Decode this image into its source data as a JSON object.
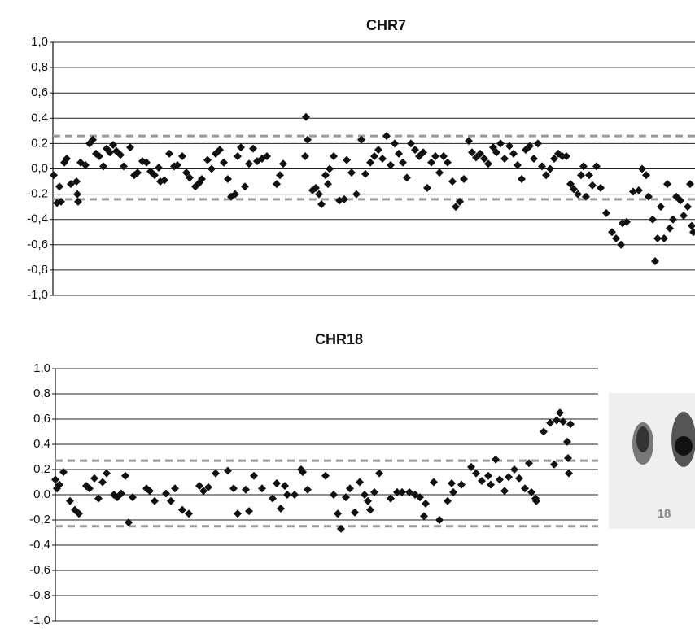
{
  "chart_data": [
    {
      "type": "scatter",
      "title": "CHR7",
      "color": "#111111",
      "grid": true,
      "xlim": [
        0,
        789
      ],
      "ylim": [
        -1.0,
        1.0
      ],
      "yticks": [
        {
          "value": -1.0,
          "label": "-1,0"
        },
        {
          "value": -0.8,
          "label": "-0,8"
        },
        {
          "value": -0.6,
          "label": "-0,6"
        },
        {
          "value": -0.4,
          "label": "-0,4"
        },
        {
          "value": -0.2,
          "label": "-0.2"
        },
        {
          "value": 0,
          "label": "0,0"
        },
        {
          "value": 0.2,
          "label": "0.2"
        },
        {
          "value": 0.4,
          "label": "0.4"
        },
        {
          "value": 0.6,
          "label": "0,6"
        },
        {
          "value": 0.8,
          "label": "0,8"
        },
        {
          "value": 1.0,
          "label": "1,0"
        }
      ],
      "hlines": [
        0.26,
        -0.24
      ],
      "x": [
        1,
        5,
        8,
        10,
        14,
        17,
        22,
        29,
        30,
        31,
        34,
        40,
        45,
        49,
        53,
        57,
        62,
        66,
        70,
        74,
        78,
        83,
        87,
        95,
        100,
        104,
        110,
        115,
        120,
        125,
        130,
        132,
        137,
        143,
        149,
        153,
        159,
        164,
        168,
        175,
        180,
        183,
        190,
        195,
        200,
        205,
        210,
        215,
        219,
        224,
        227,
        231,
        236,
        241,
        246,
        251,
        257,
        263,
        275,
        279,
        283,
        310,
        311,
        313,
        319,
        323,
        327,
        330,
        335,
        338,
        340,
        345,
        352,
        358,
        361,
        367,
        373,
        379,
        384,
        390,
        395,
        400,
        405,
        410,
        415,
        420,
        425,
        430,
        435,
        440,
        445,
        450,
        455,
        460,
        465,
        470,
        475,
        480,
        485,
        491,
        495,
        500,
        505,
        511,
        515,
        520,
        525,
        530,
        535,
        541,
        545,
        550,
        555,
        561,
        566,
        571,
        576,
        581,
        586,
        591,
        596,
        601,
        606,
        611,
        616,
        621,
        626,
        631,
        636,
        640,
        645,
        649,
        652,
        655,
        659,
        663,
        668,
        673,
        680,
        687,
        692,
        698,
        700,
        705,
        713,
        720,
        724,
        729,
        732,
        737,
        740,
        743,
        747,
        751,
        755,
        758,
        762,
        766,
        771,
        775,
        780,
        783,
        785,
        787
      ],
      "values": [
        -0.05,
        -0.27,
        -0.14,
        -0.26,
        0.05,
        0.08,
        -0.12,
        -0.1,
        -0.2,
        -0.26,
        0.05,
        0.03,
        0.2,
        0.23,
        0.12,
        0.1,
        0.02,
        0.16,
        0.13,
        0.19,
        0.14,
        0.11,
        0.02,
        0.17,
        -0.05,
        -0.03,
        0.06,
        0.05,
        -0.02,
        -0.05,
        0.01,
        -0.1,
        -0.09,
        0.12,
        0.02,
        0.03,
        0.1,
        -0.03,
        -0.07,
        -0.14,
        -0.11,
        -0.08,
        0.07,
        0.0,
        0.12,
        0.15,
        0.05,
        -0.08,
        -0.22,
        -0.2,
        0.1,
        0.17,
        -0.14,
        0.04,
        0.16,
        0.06,
        0.08,
        0.1,
        -0.12,
        -0.05,
        0.04,
        0.1,
        0.41,
        0.23,
        -0.17,
        -0.15,
        -0.2,
        -0.28,
        -0.05,
        -0.12,
        0.0,
        0.1,
        -0.25,
        -0.24,
        0.07,
        -0.03,
        -0.2,
        0.23,
        -0.04,
        0.05,
        0.1,
        0.15,
        0.08,
        0.26,
        0.03,
        0.2,
        0.12,
        0.05,
        -0.07,
        0.2,
        0.15,
        0.1,
        0.13,
        -0.15,
        0.05,
        0.1,
        -0.03,
        0.1,
        0.05,
        -0.1,
        -0.3,
        -0.26,
        -0.08,
        0.22,
        0.13,
        0.09,
        0.12,
        0.08,
        0.04,
        0.17,
        0.13,
        0.2,
        0.08,
        0.18,
        0.12,
        0.03,
        -0.08,
        0.15,
        0.18,
        0.08,
        0.2,
        0.02,
        -0.05,
        0.0,
        0.08,
        0.12,
        0.1,
        0.1,
        -0.12,
        -0.16,
        -0.2,
        -0.05,
        0.02,
        -0.22,
        -0.05,
        -0.13,
        0.02,
        -0.15,
        -0.35,
        -0.5,
        -0.55,
        -0.6,
        -0.43,
        -0.42,
        -0.18,
        -0.17,
        0.0,
        -0.05,
        -0.22,
        -0.4,
        -0.73,
        -0.55,
        -0.3,
        -0.55,
        -0.12,
        -0.47,
        -0.4,
        -0.22,
        -0.25,
        -0.37,
        -0.3,
        -0.12,
        -0.45,
        -0.5
      ]
    },
    {
      "type": "scatter",
      "title": "CHR18",
      "color": "#111111",
      "grid": true,
      "annotation": "18",
      "xlim": [
        0,
        667
      ],
      "ylim": [
        -1.0,
        1.0
      ],
      "yticks": [
        {
          "value": -1.0,
          "label": "-1,0"
        },
        {
          "value": -0.8,
          "label": "-0,8"
        },
        {
          "value": -0.6,
          "label": "-0,6"
        },
        {
          "value": -0.4,
          "label": "-0,4"
        },
        {
          "value": -0.2,
          "label": "-0,2"
        },
        {
          "value": 0,
          "label": "0,0"
        },
        {
          "value": 0.2,
          "label": "0,2"
        },
        {
          "value": 0.4,
          "label": "0,4"
        },
        {
          "value": 0.6,
          "label": "0,6"
        },
        {
          "value": 0.8,
          "label": "0,8"
        },
        {
          "value": 1.0,
          "label": "1,0"
        }
      ],
      "hlines": [
        0.27,
        -0.25
      ],
      "x": [
        0,
        2,
        5,
        10,
        18,
        24,
        29,
        38,
        42,
        48,
        53,
        58,
        63,
        72,
        76,
        81,
        86,
        90,
        95,
        112,
        116,
        122,
        136,
        142,
        147,
        156,
        164,
        177,
        182,
        188,
        197,
        212,
        219,
        224,
        234,
        238,
        244,
        254,
        267,
        272,
        277,
        282,
        285,
        294,
        302,
        304,
        310,
        332,
        342,
        347,
        351,
        357,
        362,
        368,
        374,
        380,
        384,
        387,
        392,
        398,
        412,
        420,
        426,
        435,
        442,
        448,
        453,
        455,
        465,
        472,
        482,
        487,
        489,
        499,
        511,
        517,
        524,
        532,
        535,
        541,
        546,
        552,
        557,
        564,
        570,
        577,
        582,
        585,
        590,
        591,
        600,
        608,
        613,
        616,
        620,
        624,
        629,
        630,
        631,
        633
      ],
      "values": [
        0.12,
        0.05,
        0.08,
        0.18,
        -0.05,
        -0.12,
        -0.15,
        0.07,
        0.05,
        0.13,
        -0.03,
        0.1,
        0.17,
        0.0,
        -0.02,
        0.01,
        0.15,
        -0.22,
        -0.02,
        0.05,
        0.03,
        -0.05,
        0.01,
        -0.05,
        0.05,
        -0.12,
        -0.15,
        0.07,
        0.03,
        0.06,
        0.17,
        0.19,
        0.05,
        -0.15,
        0.04,
        -0.13,
        0.15,
        0.05,
        -0.03,
        0.09,
        -0.11,
        0.07,
        0.0,
        0.0,
        0.2,
        0.18,
        0.04,
        0.15,
        0.0,
        -0.15,
        -0.27,
        -0.02,
        0.05,
        -0.14,
        0.1,
        0.0,
        -0.05,
        -0.12,
        0.02,
        0.17,
        -0.03,
        0.02,
        0.02,
        0.02,
        0.0,
        -0.02,
        -0.17,
        -0.07,
        0.1,
        -0.2,
        -0.05,
        0.09,
        0.02,
        0.08,
        0.22,
        0.17,
        0.11,
        0.15,
        0.08,
        0.28,
        0.12,
        0.03,
        0.14,
        0.2,
        0.13,
        0.05,
        0.25,
        0.02,
        -0.03,
        -0.05,
        0.5,
        0.57,
        0.24,
        0.59,
        0.65,
        0.58,
        0.42,
        0.29,
        0.17,
        0.56
      ]
    }
  ]
}
